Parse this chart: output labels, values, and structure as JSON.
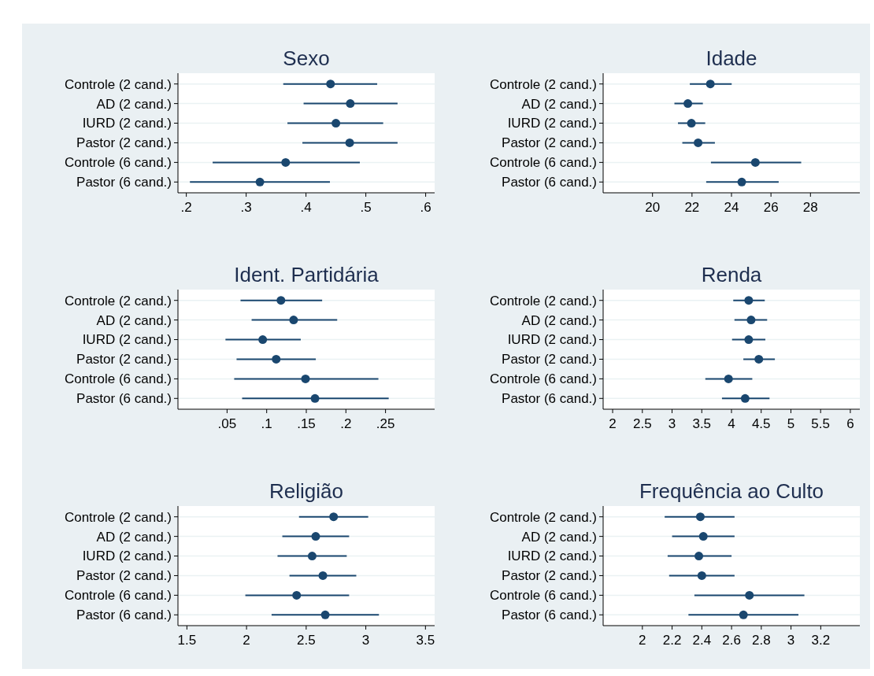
{
  "chart_data": [
    {
      "type": "scatter",
      "orientation": "horizontal",
      "title": "Sexo",
      "categories": [
        "Controle (2 cand.)",
        "AD (2 cand.)",
        "IURD (2 cand.)",
        "Pastor (2 cand.)",
        "Controle (6 cand.)",
        "Pastor (6 cand.)"
      ],
      "values": [
        0.441,
        0.474,
        0.45,
        0.473,
        0.366,
        0.323
      ],
      "errors": [
        [
          0.362,
          0.519
        ],
        [
          0.396,
          0.553
        ],
        [
          0.369,
          0.529
        ],
        [
          0.394,
          0.553
        ],
        [
          0.244,
          0.49
        ],
        [
          0.206,
          0.44
        ]
      ],
      "color": "#1a476f",
      "marker": "circle",
      "grid": "y",
      "xlim": [
        0.186,
        0.615
      ],
      "xticks": [
        {
          "value": 0.2,
          "label": ".2"
        },
        {
          "value": 0.3,
          "label": ".3"
        },
        {
          "value": 0.4,
          "label": ".4"
        },
        {
          "value": 0.5,
          "label": ".5"
        },
        {
          "value": 0.6,
          "label": ".6"
        }
      ]
    },
    {
      "type": "scatter",
      "orientation": "horizontal",
      "title": "Idade",
      "categories": [
        "Controle (2 cand.)",
        "AD (2 cand.)",
        "IURD (2 cand.)",
        "Pastor (2 cand.)",
        "Controle (6 cand.)",
        "Pastor (6 cand.)"
      ],
      "values": [
        22.93,
        21.79,
        21.97,
        22.31,
        25.21,
        24.52
      ],
      "errors": [
        [
          21.89,
          24.01
        ],
        [
          21.11,
          22.55
        ],
        [
          21.29,
          22.67
        ],
        [
          21.51,
          23.16
        ],
        [
          22.96,
          27.53
        ],
        [
          22.72,
          26.39
        ]
      ],
      "color": "#1a476f",
      "marker": "circle",
      "grid": "y",
      "xlim": [
        17.5,
        30.5
      ],
      "xticks": [
        20,
        22,
        24,
        26,
        28
      ]
    },
    {
      "type": "scatter",
      "orientation": "horizontal",
      "title": "Ident. Partidária",
      "categories": [
        "Controle (2 cand.)",
        "AD (2 cand.)",
        "IURD (2 cand.)",
        "Pastor (2 cand.)",
        "Controle (6 cand.)",
        "Pastor (6 cand.)"
      ],
      "values": [
        0.118,
        0.134,
        0.095,
        0.112,
        0.149,
        0.161
      ],
      "errors": [
        [
          0.067,
          0.17
        ],
        [
          0.081,
          0.189
        ],
        [
          0.048,
          0.143
        ],
        [
          0.062,
          0.162
        ],
        [
          0.059,
          0.241
        ],
        [
          0.069,
          0.254
        ]
      ],
      "color": "#1a476f",
      "marker": "circle",
      "grid": "y",
      "xlim": [
        -0.012,
        0.312
      ],
      "xticks": [
        {
          "value": 0.05,
          "label": ".05"
        },
        {
          "value": 0.1,
          "label": ".1"
        },
        {
          "value": 0.15,
          "label": ".15"
        },
        {
          "value": 0.2,
          "label": ".2"
        },
        {
          "value": 0.25,
          "label": ".25"
        }
      ]
    },
    {
      "type": "scatter",
      "orientation": "horizontal",
      "title": "Renda",
      "categories": [
        "Controle (2 cand.)",
        "AD (2 cand.)",
        "IURD (2 cand.)",
        "Pastor (2 cand.)",
        "Controle (6 cand.)",
        "Pastor (6 cand.)"
      ],
      "values": [
        4.29,
        4.33,
        4.29,
        4.46,
        3.95,
        4.23
      ],
      "errors": [
        [
          4.03,
          4.56
        ],
        [
          4.05,
          4.6
        ],
        [
          4.01,
          4.57
        ],
        [
          4.2,
          4.73
        ],
        [
          3.56,
          4.35
        ],
        [
          3.84,
          4.64
        ]
      ],
      "color": "#1a476f",
      "marker": "circle",
      "grid": "y",
      "xlim": [
        1.84,
        6.16
      ],
      "xticks": [
        2,
        2.5,
        3,
        3.5,
        4,
        4.5,
        5,
        5.5,
        6
      ]
    },
    {
      "type": "scatter",
      "orientation": "horizontal",
      "title": "Religião",
      "categories": [
        "Controle (2 cand.)",
        "AD (2 cand.)",
        "IURD (2 cand.)",
        "Pastor (2 cand.)",
        "Controle (6 cand.)",
        "Pastor (6 cand.)"
      ],
      "values": [
        2.73,
        2.58,
        2.55,
        2.64,
        2.42,
        2.66
      ],
      "errors": [
        [
          2.44,
          3.02
        ],
        [
          2.3,
          2.86
        ],
        [
          2.26,
          2.84
        ],
        [
          2.36,
          2.92
        ],
        [
          1.99,
          2.86
        ],
        [
          2.21,
          3.11
        ]
      ],
      "color": "#1a476f",
      "marker": "circle",
      "grid": "y",
      "xlim": [
        1.425,
        3.577
      ],
      "xticks": [
        1.5,
        2,
        2.5,
        3,
        3.5
      ]
    },
    {
      "type": "scatter",
      "orientation": "horizontal",
      "title": "Frequência ao Culto",
      "categories": [
        "Controle (2 cand.)",
        "AD (2 cand.)",
        "IURD (2 cand.)",
        "Pastor (2 cand.)",
        "Controle (6 cand.)",
        "Pastor (6 cand.)"
      ],
      "values": [
        2.39,
        2.41,
        2.38,
        2.4,
        2.72,
        2.68
      ],
      "errors": [
        [
          2.15,
          2.62
        ],
        [
          2.2,
          2.62
        ],
        [
          2.17,
          2.6
        ],
        [
          2.18,
          2.62
        ],
        [
          2.35,
          3.09
        ],
        [
          2.31,
          3.05
        ]
      ],
      "color": "#1a476f",
      "marker": "circle",
      "grid": "y",
      "xlim": [
        1.736,
        3.463
      ],
      "xticks": [
        2,
        2.2,
        2.4,
        2.6,
        2.8,
        3,
        3.2
      ]
    }
  ]
}
